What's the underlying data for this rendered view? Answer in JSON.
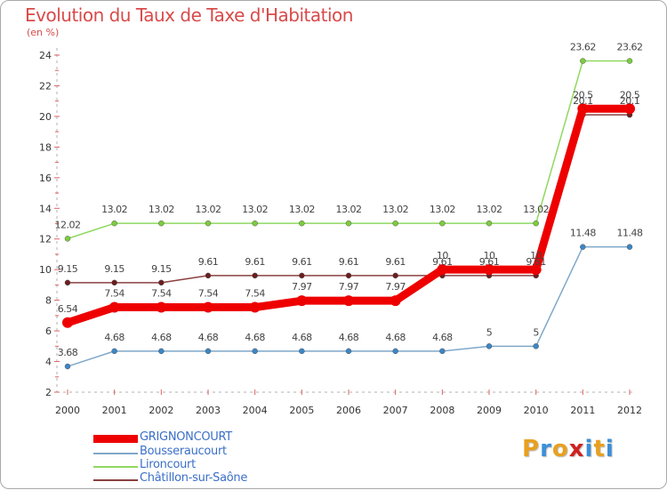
{
  "title": "Evolution du Taux de Taxe d'Habitation",
  "unit_label": "(en %)",
  "brand_text": "Proxiti",
  "brand_colors": [
    "#e8a020",
    "#3a8fd8",
    "#e8a020",
    "#d02020",
    "#3a8fd8",
    "#e8a020",
    "#3a8fd8"
  ],
  "chart_data": {
    "type": "line",
    "title": "Evolution du Taux de Taxe d'Habitation",
    "ylabel": "(en %)",
    "xlabel": "",
    "x": [
      "2000",
      "2001",
      "2002",
      "2003",
      "2004",
      "2005",
      "2006",
      "2007",
      "2008",
      "2009",
      "2010",
      "2011",
      "2012"
    ],
    "ylim": [
      2,
      24
    ],
    "yticks": [
      2,
      4,
      6,
      8,
      10,
      12,
      14,
      16,
      18,
      20,
      22,
      24
    ],
    "grid": false,
    "legend_position": "bottom-left",
    "series": [
      {
        "name": "GRIGNONCOURT",
        "color": "#ee0000",
        "point_color": "#ee0000",
        "emphasis": true,
        "values": [
          6.54,
          7.54,
          7.54,
          7.54,
          7.54,
          7.97,
          7.97,
          7.97,
          10,
          10,
          10,
          20.5,
          20.5
        ],
        "labels": [
          "6.54",
          "7.54",
          "7.54",
          "7.54",
          "7.54",
          "7.97",
          "7.97",
          "7.97",
          "10",
          "10",
          "10",
          "20.5",
          "20.5"
        ]
      },
      {
        "name": "Bousseraucourt",
        "color": "#7fa8c9",
        "point_color": "#3b86c6",
        "emphasis": false,
        "values": [
          3.68,
          4.68,
          4.68,
          4.68,
          4.68,
          4.68,
          4.68,
          4.68,
          4.68,
          5,
          5,
          11.48,
          11.48
        ],
        "labels": [
          "3.68",
          "4.68",
          "4.68",
          "4.68",
          "4.68",
          "4.68",
          "4.68",
          "4.68",
          "4.68",
          "5",
          "5",
          "11.48",
          "11.48"
        ]
      },
      {
        "name": "Lironcourt",
        "color": "#8fd860",
        "point_color": "#7ccd3c",
        "emphasis": false,
        "values": [
          12.02,
          13.02,
          13.02,
          13.02,
          13.02,
          13.02,
          13.02,
          13.02,
          13.02,
          13.02,
          13.02,
          23.62,
          23.62
        ],
        "labels": [
          "12.02",
          "13.02",
          "13.02",
          "13.02",
          "13.02",
          "13.02",
          "13.02",
          "13.02",
          "13.02",
          "13.02",
          "13.02",
          "23.62",
          "23.62"
        ]
      },
      {
        "name": "Châtillon-sur-Saône",
        "color": "#8b4040",
        "point_color": "#6b1e1e",
        "emphasis": false,
        "values": [
          9.15,
          9.15,
          9.15,
          9.61,
          9.61,
          9.61,
          9.61,
          9.61,
          9.61,
          9.61,
          9.61,
          20.1,
          20.1
        ],
        "labels": [
          "9.15",
          "9.15",
          "9.15",
          "9.61",
          "9.61",
          "9.61",
          "9.61",
          "9.61",
          "9.61",
          "9.61",
          "9.61",
          "20.1",
          "20.1"
        ]
      }
    ]
  }
}
